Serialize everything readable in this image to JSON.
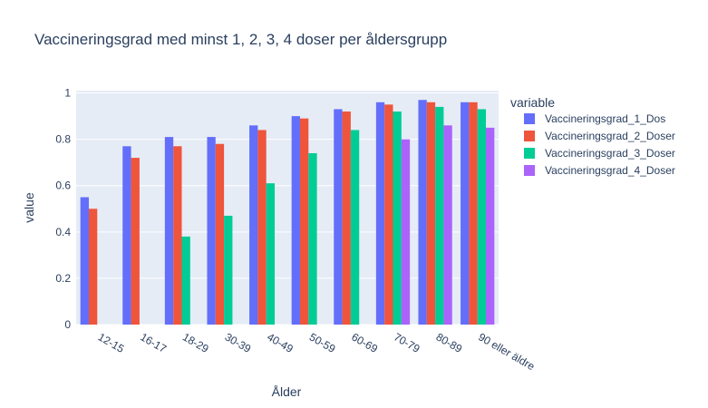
{
  "chart_data": {
    "type": "bar",
    "title": "Vaccineringsgrad med minst 1, 2, 3, 4 doser per åldersgrupp",
    "xlabel": "Ålder",
    "ylabel": "value",
    "legend_title": "variable",
    "legend_position": "right",
    "grid": true,
    "ylim": [
      0,
      1.01
    ],
    "yticks": [
      0,
      0.2,
      0.4,
      0.6,
      0.8,
      1
    ],
    "ytick_labels": [
      "0",
      "0.2",
      "0.4",
      "0.6",
      "0.8",
      "1"
    ],
    "categories": [
      "12-15",
      "16-17",
      "18-29",
      "30-39",
      "40-49",
      "50-59",
      "60-69",
      "70-79",
      "80-89",
      "90 eller äldre"
    ],
    "series": [
      {
        "name": "Vaccineringsgrad_1_Dos",
        "color": "#636efa",
        "values": [
          0.55,
          0.77,
          0.81,
          0.81,
          0.86,
          0.9,
          0.93,
          0.96,
          0.97,
          0.96
        ]
      },
      {
        "name": "Vaccineringsgrad_2_Doser",
        "color": "#ef553b",
        "values": [
          0.5,
          0.72,
          0.77,
          0.78,
          0.84,
          0.89,
          0.92,
          0.95,
          0.96,
          0.96
        ]
      },
      {
        "name": "Vaccineringsgrad_3_Doser",
        "color": "#00cc96",
        "values": [
          null,
          null,
          0.38,
          0.47,
          0.61,
          0.74,
          0.84,
          0.92,
          0.94,
          0.93
        ]
      },
      {
        "name": "Vaccineringsgrad_4_Doser",
        "color": "#ab63fa",
        "values": [
          null,
          null,
          null,
          null,
          null,
          null,
          null,
          0.8,
          0.86,
          0.85
        ]
      }
    ]
  }
}
